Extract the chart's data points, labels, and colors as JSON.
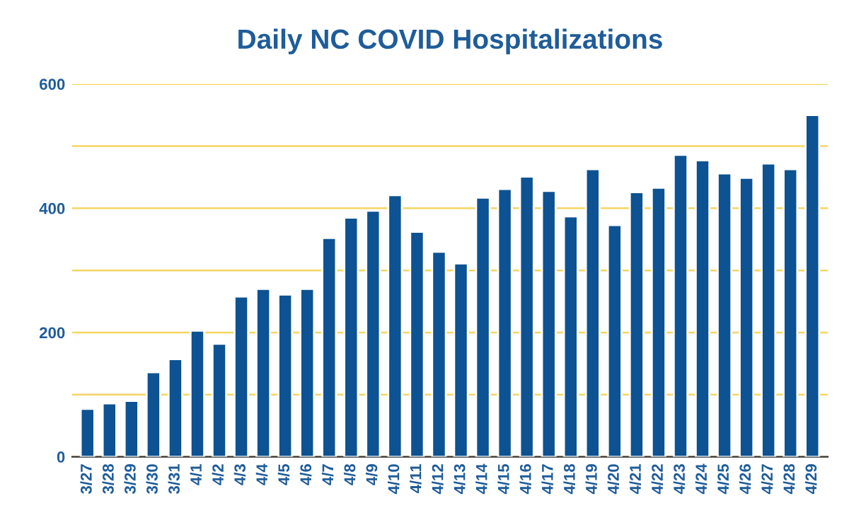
{
  "chart_data": {
    "type": "bar",
    "title": "Daily NC COVID Hospitalizations",
    "categories": [
      "3/27",
      "3/28",
      "3/29",
      "3/30",
      "3/31",
      "4/1",
      "4/2",
      "4/3",
      "4/4",
      "4/5",
      "4/6",
      "4/7",
      "4/8",
      "4/9",
      "4/10",
      "4/11",
      "4/12",
      "4/13",
      "4/14",
      "4/15",
      "4/16",
      "4/17",
      "4/18",
      "4/19",
      "4/20",
      "4/21",
      "4/22",
      "4/23",
      "4/24",
      "4/25",
      "4/26",
      "4/27",
      "4/28",
      "4/29"
    ],
    "values": [
      77,
      86,
      90,
      136,
      157,
      203,
      182,
      258,
      270,
      261,
      270,
      352,
      385,
      396,
      421,
      362,
      330,
      311,
      417,
      431,
      451,
      428,
      387,
      463,
      373,
      426,
      433,
      486,
      477,
      456,
      449,
      472,
      463,
      550
    ],
    "color": "#0d5292",
    "ylim": [
      0,
      600
    ],
    "yticks": [
      0,
      {
        "value": 100,
        "label": null
      },
      200,
      {
        "value": 300,
        "label": null
      },
      400,
      {
        "value": 500,
        "label": null
      },
      600
    ],
    "grid": "y"
  }
}
